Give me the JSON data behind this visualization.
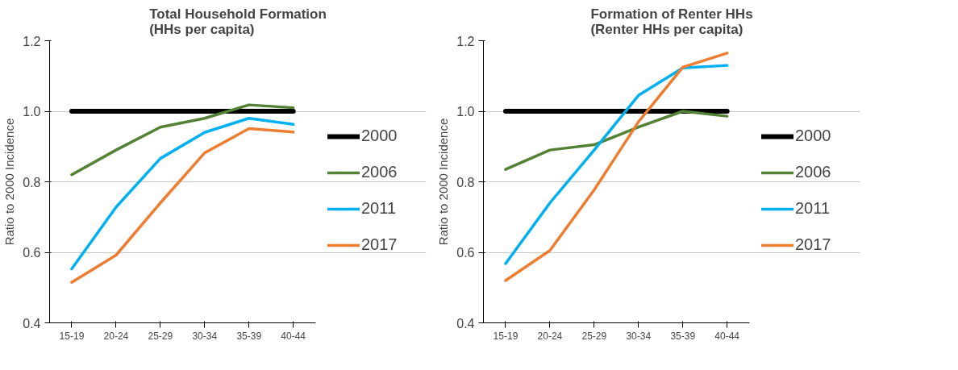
{
  "chart_data": [
    {
      "type": "line",
      "title": "Total Household Formation\n(HHs per capita)",
      "ylabel": "Ratio to 2000 Incidence",
      "categories": [
        "15-19",
        "20-24",
        "25-29",
        "30-34",
        "35-39",
        "40-44"
      ],
      "ylim": [
        0.4,
        1.2
      ],
      "yticks": [
        {
          "value": 0.4,
          "label": "0.4"
        },
        {
          "value": 0.6,
          "label": "0.6"
        },
        {
          "value": 0.8,
          "label": "0.8"
        },
        {
          "value": 1.0,
          "label": "1.0"
        },
        {
          "value": 1.2,
          "label": "1.2"
        }
      ],
      "grid": "y",
      "legend": "right",
      "marker": "none",
      "line_style": "solid",
      "series": [
        {
          "name": "2000",
          "color": "#000000",
          "values": [
            1,
            1,
            1,
            1,
            1,
            1
          ]
        },
        {
          "name": "2006",
          "color": "#548235",
          "values": [
            0.82,
            0.89,
            0.955,
            0.98,
            1.018,
            1.01
          ]
        },
        {
          "name": "2011",
          "color": "#00b0f0",
          "values": [
            0.553,
            0.728,
            0.866,
            0.94,
            0.98,
            0.963
          ]
        },
        {
          "name": "2017",
          "color": "#ed7d31",
          "values": [
            0.515,
            0.592,
            0.74,
            0.882,
            0.951,
            0.941
          ]
        }
      ]
    },
    {
      "type": "line",
      "title": "Formation of Renter HHs\n(Renter HHs per capita)",
      "ylabel": "Ratio to 2000 Incidence",
      "categories": [
        "15-19",
        "20-24",
        "25-29",
        "30-34",
        "35-39",
        "40-44"
      ],
      "ylim": [
        0.4,
        1.2
      ],
      "yticks": [
        {
          "value": 0.4,
          "label": "0.4"
        },
        {
          "value": 0.6,
          "label": "0.6"
        },
        {
          "value": 0.8,
          "label": "0.8"
        },
        {
          "value": 1.0,
          "label": "1.0"
        },
        {
          "value": 1.2,
          "label": "1.2"
        }
      ],
      "grid": "y",
      "legend": "right",
      "marker": "none",
      "line_style": "solid",
      "series": [
        {
          "name": "2000",
          "color": "#000000",
          "values": [
            1,
            1,
            1,
            1,
            1,
            1
          ]
        },
        {
          "name": "2006",
          "color": "#548235",
          "values": [
            0.835,
            0.89,
            0.905,
            0.955,
            1.0,
            0.986
          ]
        },
        {
          "name": "2011",
          "color": "#00b0f0",
          "values": [
            0.568,
            0.74,
            0.89,
            1.045,
            1.123,
            1.13
          ]
        },
        {
          "name": "2017",
          "color": "#ed7d31",
          "values": [
            0.52,
            0.605,
            0.777,
            0.97,
            1.125,
            1.165
          ]
        }
      ]
    }
  ]
}
